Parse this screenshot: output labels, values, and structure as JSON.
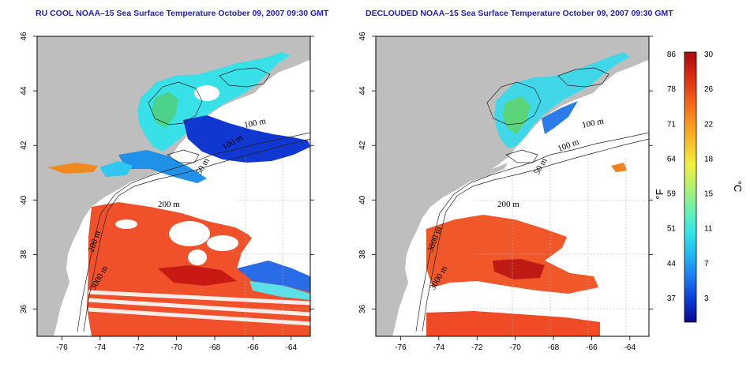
{
  "panels": {
    "left": {
      "title": "RU COOL NOAA–15 Sea Surface Temperature October 09, 2007 09:30 GMT"
    },
    "right": {
      "title": "DECLOUDED NOAA–15 Sea Surface Temperature October 09, 2007 09:30 GMT"
    }
  },
  "map_axes": {
    "lon_range": [
      -77.3,
      -63.0
    ],
    "lat_range": [
      35.0,
      46.0
    ],
    "lon_ticks": [
      -76,
      -74,
      -72,
      -70,
      -68,
      -66,
      -64
    ],
    "lat_ticks": [
      36,
      38,
      40,
      42,
      44,
      46
    ]
  },
  "isobath_labels": {
    "left": [
      "100 m",
      "100 m",
      "50 m",
      "200 m",
      "200 m",
      "3000 m"
    ],
    "right": [
      "100 m",
      "100 m",
      "50 m",
      "200 m",
      "3000 m",
      "3000 m"
    ]
  },
  "colorbar": {
    "fahrenheit_labels": [
      "86",
      "78",
      "71",
      "64",
      "59",
      "51",
      "44",
      "37"
    ],
    "celsius_labels": [
      "30",
      "26",
      "22",
      "18",
      "15",
      "11",
      "7",
      "3"
    ],
    "unit_f": "°F",
    "unit_c": "°C",
    "range_c": [
      0,
      30
    ],
    "colors": [
      "#08088c",
      "#0b3cd8",
      "#1f7cf0",
      "#21b8f0",
      "#35e6e6",
      "#6cf0b0",
      "#b4f070",
      "#f0f040",
      "#f8c028",
      "#f89020",
      "#f05818",
      "#d82814",
      "#a80c0c"
    ]
  },
  "colors": {
    "land": "#bebebe",
    "water_cloud": "#ffffff",
    "title": "#2222bb",
    "grid": "#b0b0b0"
  }
}
